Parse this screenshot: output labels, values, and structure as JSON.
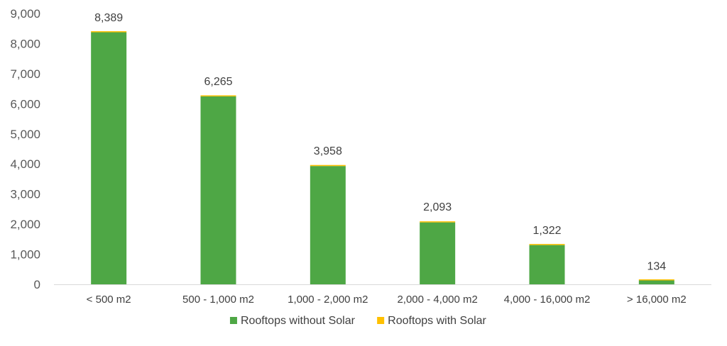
{
  "chart_data": {
    "type": "bar",
    "stacked": true,
    "title": "",
    "xlabel": "",
    "ylabel": "",
    "ylim": [
      0,
      9000
    ],
    "yticks": [
      0,
      1000,
      2000,
      3000,
      4000,
      5000,
      6000,
      7000,
      8000,
      9000
    ],
    "ytick_labels": [
      "0",
      "1,000",
      "2,000",
      "3,000",
      "4,000",
      "5,000",
      "6,000",
      "7,000",
      "8,000",
      "9,000"
    ],
    "grid": false,
    "legend_position": "bottom",
    "categories": [
      "< 500 m2",
      "500 - 1,000 m2",
      "1,000 - 2,000 m2",
      "2,000 - 4,000 m2",
      "4,000 - 16,000 m2",
      "> 16,000 m2"
    ],
    "series": [
      {
        "name": "Rooftops without Solar",
        "color": "#4ea745",
        "values": [
          8375,
          6245,
          3930,
          2058,
          1305,
          130
        ]
      },
      {
        "name": "Rooftops with Solar",
        "color": "#ffc000",
        "values": [
          14,
          20,
          28,
          35,
          17,
          4
        ]
      }
    ],
    "data_labels": [
      "8,389",
      "6,265",
      "3,958",
      "2,093",
      "1,322",
      "134"
    ]
  }
}
